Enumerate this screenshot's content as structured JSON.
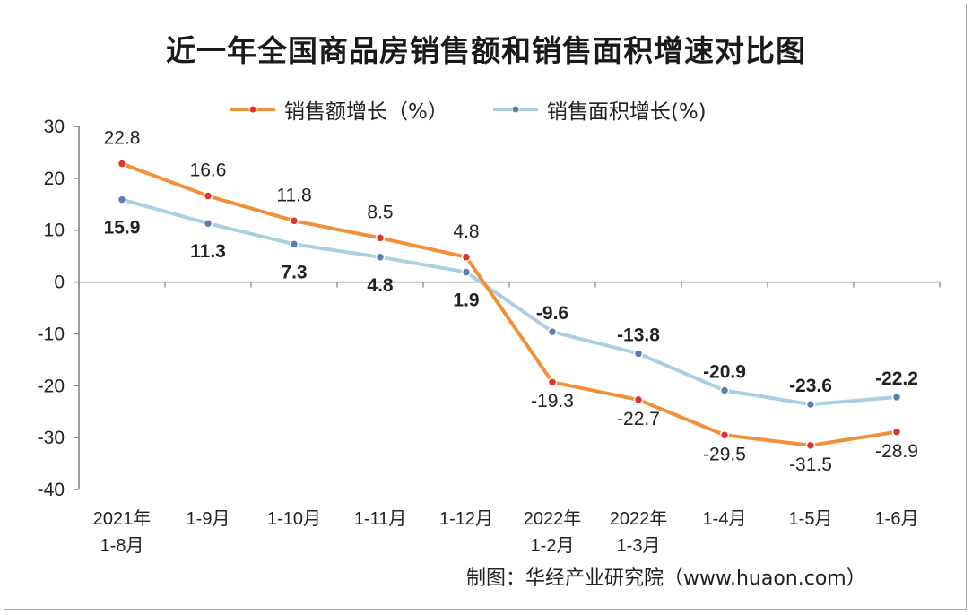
{
  "title": "近一年全国商品房销售额和销售面积增速对比图",
  "source": "制图：华经产业研究院（www.huaon.com）",
  "colors": {
    "sales": "#f0913a",
    "area": "#a9cfe3",
    "sales_marker": "#e0342a",
    "area_marker": "#5b7db4",
    "axis": "#7f7f7f"
  },
  "chart_data": {
    "type": "line",
    "categories": [
      "2021年\n1-8月",
      "1-9月",
      "1-10月",
      "1-11月",
      "1-12月",
      "2022年\n1-2月",
      "2022年\n1-3月",
      "1-4月",
      "1-5月",
      "1-6月"
    ],
    "ylim": [
      -40,
      30
    ],
    "yticks": [
      30,
      20,
      10,
      0,
      -10,
      -20,
      -30,
      -40
    ],
    "grid": false,
    "legend": "top",
    "series": [
      {
        "name": "销售额增长（%）",
        "values": [
          22.8,
          16.6,
          11.8,
          8.5,
          4.8,
          -19.3,
          -22.7,
          -29.5,
          -31.5,
          -28.9
        ],
        "labels": [
          "22.8",
          "16.6",
          "11.8",
          "8.5",
          "4.8",
          "-19.3",
          "-22.7",
          "-29.5",
          "-31.5",
          "-28.9"
        ]
      },
      {
        "name": "销售面积增长(%)",
        "values": [
          15.9,
          11.3,
          7.3,
          4.8,
          1.9,
          -9.6,
          -13.8,
          -20.9,
          -23.6,
          -22.2
        ],
        "labels": [
          "15.9",
          "11.3",
          "7.3",
          "4.8",
          "1.9",
          "-9.6",
          "-13.8",
          "-20.9",
          "-23.6",
          "-22.2"
        ]
      }
    ]
  }
}
